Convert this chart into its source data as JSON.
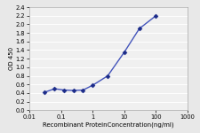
{
  "x": [
    0.031,
    0.063,
    0.125,
    0.25,
    0.5,
    1.0,
    3.0,
    10.0,
    30.0,
    100.0
  ],
  "y": [
    0.42,
    0.5,
    0.47,
    0.46,
    0.47,
    0.58,
    0.8,
    1.35,
    1.9,
    2.2
  ],
  "line_color": "#4455bb",
  "marker_color": "#1a2a88",
  "marker": "D",
  "marker_size": 2.5,
  "line_width": 1.0,
  "xlabel": "Recombinant ProteinConcentration(ng/ml)",
  "ylabel": "OD 450",
  "xlim": [
    0.01,
    1000
  ],
  "ylim": [
    0,
    2.4
  ],
  "yticks": [
    0,
    0.2,
    0.4,
    0.6,
    0.8,
    1.0,
    1.2,
    1.4,
    1.6,
    1.8,
    2.0,
    2.2,
    2.4
  ],
  "xticks": [
    0.01,
    0.1,
    1,
    10,
    100,
    1000
  ],
  "xtick_labels": [
    "0.01",
    "0.1",
    "1",
    "10",
    "100",
    "1000"
  ],
  "plot_bg_color": "#f0f0f0",
  "fig_bg_color": "#e8e8e8",
  "grid_color": "#ffffff",
  "xlabel_fontsize": 5.0,
  "ylabel_fontsize": 5.0,
  "tick_fontsize": 4.8,
  "spine_color": "#aaaaaa"
}
